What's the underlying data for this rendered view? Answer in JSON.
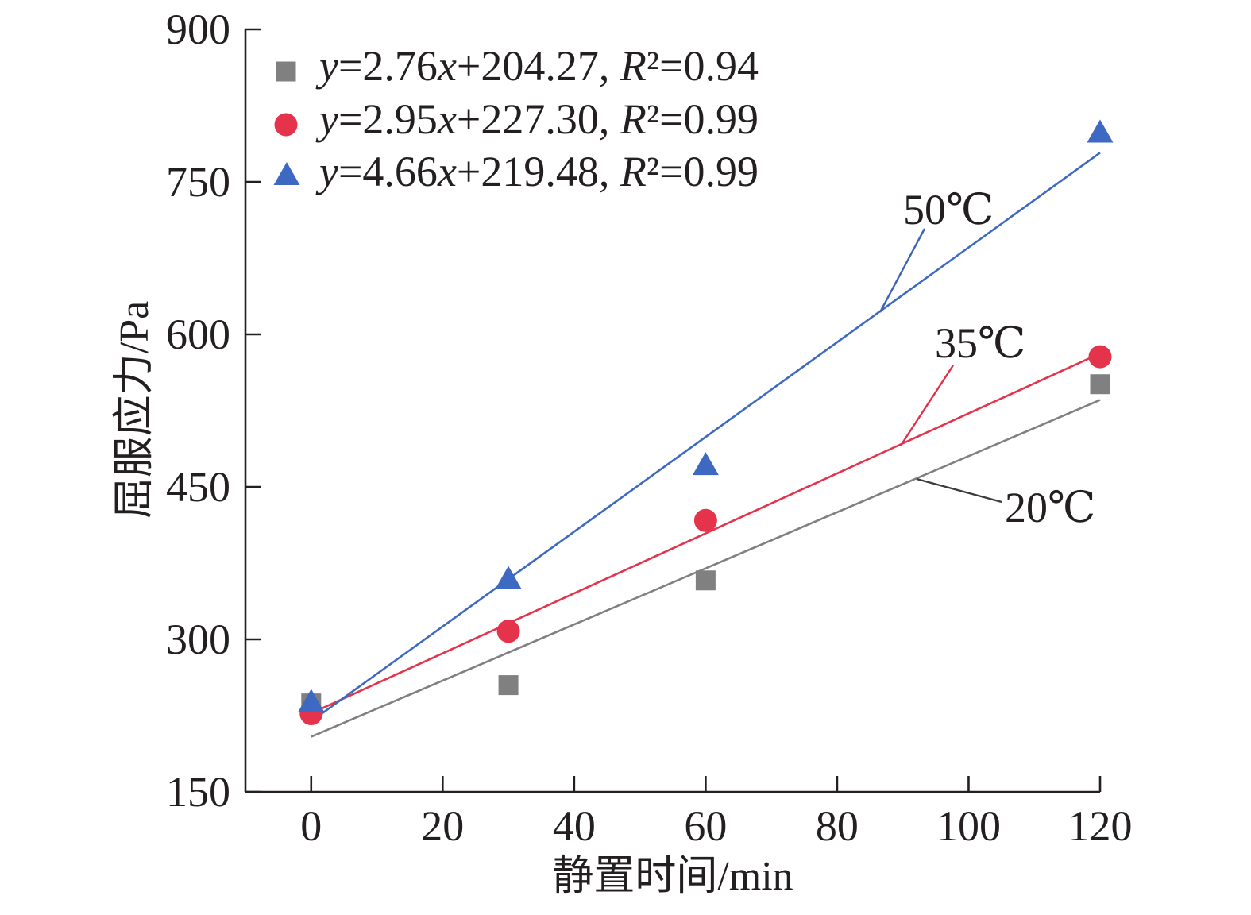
{
  "chart_data": {
    "type": "scatter",
    "xlabel": "静置时间/min",
    "ylabel": "屈服应力/Pa",
    "xlim": [
      -10,
      120
    ],
    "ylim": [
      150,
      900
    ],
    "xticks": [
      0,
      20,
      40,
      60,
      80,
      100,
      120
    ],
    "yticks": [
      150,
      300,
      450,
      600,
      750,
      900
    ],
    "grid": false,
    "legend": "top-left",
    "series": [
      {
        "name": "20℃",
        "legend": "y=2.76x+204.27, R²=0.94",
        "marker": "square",
        "color": "#808080",
        "x": [
          0,
          30,
          60,
          120
        ],
        "y": [
          237,
          255,
          358,
          551
        ],
        "fit": {
          "slope": 2.76,
          "intercept": 204.27,
          "r2": 0.94
        }
      },
      {
        "name": "35℃",
        "legend": "y=2.95x+227.30, R²=0.99",
        "marker": "circle",
        "color": "#e5334b",
        "x": [
          0,
          30,
          60,
          120
        ],
        "y": [
          227,
          308,
          417,
          578
        ],
        "fit": {
          "slope": 2.95,
          "intercept": 227.3,
          "r2": 0.99
        }
      },
      {
        "name": "50℃",
        "legend": "y=4.66x+219.48, R²=0.99",
        "marker": "triangle",
        "color": "#3d69c2",
        "x": [
          0,
          30,
          60,
          120
        ],
        "y": [
          238,
          359,
          471,
          798
        ],
        "fit": {
          "slope": 4.66,
          "intercept": 219.48,
          "r2": 0.99
        }
      }
    ]
  }
}
